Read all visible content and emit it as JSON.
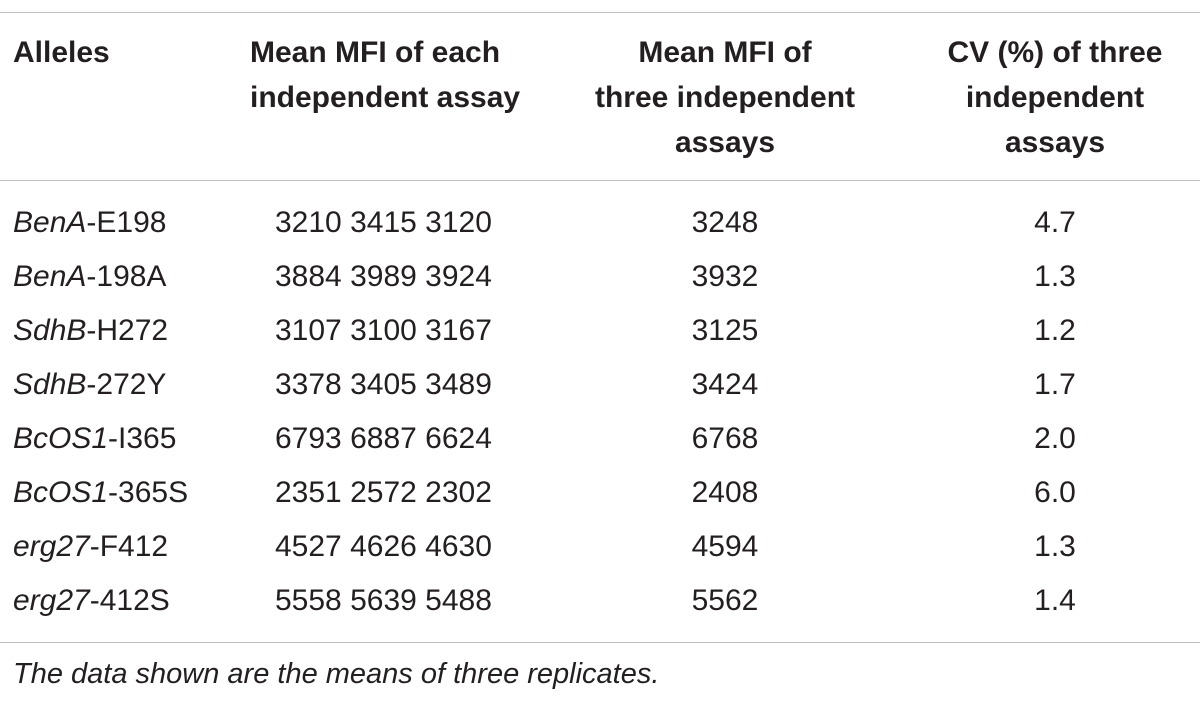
{
  "table": {
    "headers": {
      "alleles": "Alleles",
      "each_assay": [
        "Mean MFI of each",
        "independent assay"
      ],
      "mean_three": [
        "Mean MFI of",
        "three independent",
        "assays"
      ],
      "cv_three": [
        "CV (%) of three",
        "independent",
        "assays"
      ]
    },
    "rows": [
      {
        "gene": "BenA",
        "suffix": "-E198",
        "each": "3210 3415 3120",
        "mean": "3248",
        "cv": "4.7"
      },
      {
        "gene": "BenA",
        "suffix": "-198A",
        "each": "3884 3989 3924",
        "mean": "3932",
        "cv": "1.3"
      },
      {
        "gene": "SdhB",
        "suffix": "-H272",
        "each": "3107 3100 3167",
        "mean": "3125",
        "cv": "1.2"
      },
      {
        "gene": "SdhB",
        "suffix": "-272Y",
        "each": "3378 3405 3489",
        "mean": "3424",
        "cv": "1.7"
      },
      {
        "gene": "BcOS1",
        "suffix": "-I365",
        "each": "6793 6887 6624",
        "mean": "6768",
        "cv": "2.0"
      },
      {
        "gene": "BcOS1",
        "suffix": "-365S",
        "each": "2351 2572 2302",
        "mean": "2408",
        "cv": "6.0"
      },
      {
        "gene": "erg27",
        "suffix": "-F412",
        "each": "4527 4626 4630",
        "mean": "4594",
        "cv": "1.3"
      },
      {
        "gene": "erg27",
        "suffix": "-412S",
        "each": "5558 5639 5488",
        "mean": "5562",
        "cv": "1.4"
      }
    ],
    "footnote": "The data shown are the means of three replicates."
  }
}
